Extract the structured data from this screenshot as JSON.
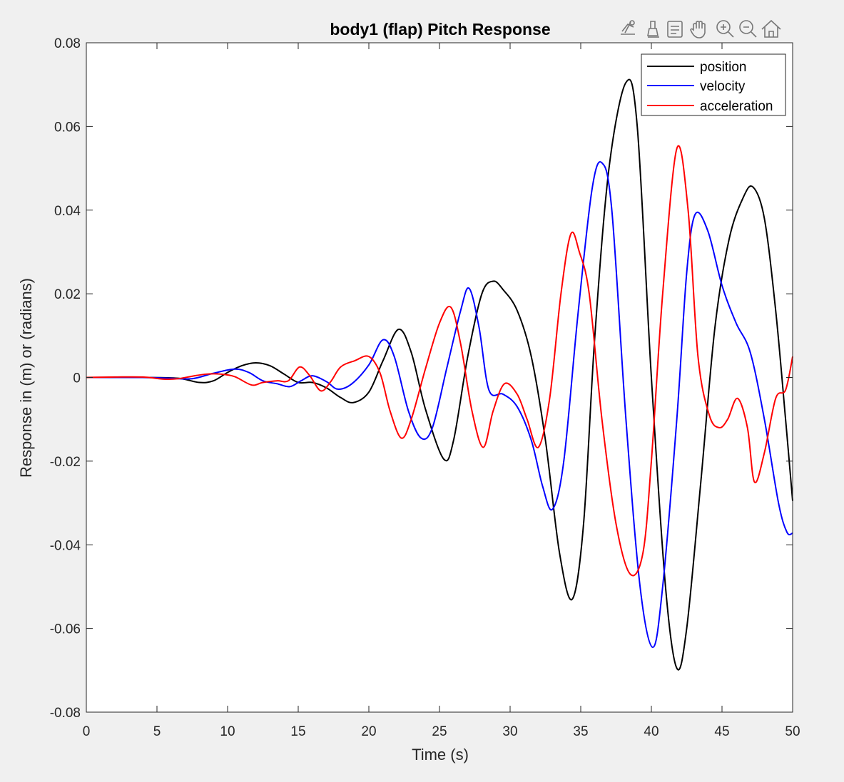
{
  "toolbar": {
    "icons": [
      "data-tips-icon",
      "brush-icon",
      "link-data-icon",
      "pan-hand-icon",
      "zoom-in-icon",
      "zoom-out-icon",
      "home-icon"
    ]
  },
  "chart_data": {
    "type": "line",
    "title": "body1 (flap) Pitch Response",
    "xlabel": "Time (s)",
    "ylabel": "Response in (m) or (radians)",
    "xlim": [
      0,
      50
    ],
    "ylim": [
      -0.08,
      0.08
    ],
    "xticks": [
      0,
      5,
      10,
      15,
      20,
      25,
      30,
      35,
      40,
      45,
      50
    ],
    "xtick_labels": [
      "0",
      "5",
      "10",
      "15",
      "20",
      "25",
      "30",
      "35",
      "40",
      "45",
      "50"
    ],
    "yticks": [
      -0.08,
      -0.06,
      -0.04,
      -0.02,
      0,
      0.02,
      0.04,
      0.06,
      0.08
    ],
    "ytick_labels": [
      "-0.08",
      "-0.06",
      "-0.04",
      "-0.02",
      "0",
      "0.02",
      "0.04",
      "0.06",
      "0.08"
    ],
    "grid": false,
    "legend_position": "top-right",
    "series": [
      {
        "name": "position",
        "color": "#000000",
        "x": [
          0,
          4,
          6.5,
          8,
          9,
          10,
          11,
          12,
          13,
          14,
          15,
          16,
          17,
          18,
          18.9,
          20,
          21,
          22.1,
          23,
          24,
          25.3,
          26,
          27,
          28,
          28.8,
          29.5,
          30.5,
          31.5,
          32.5,
          33.5,
          34.4,
          35.2,
          36,
          37,
          38.2,
          39,
          40,
          41,
          41.8,
          42.5,
          43.5,
          44.5,
          45.5,
          46.5,
          47.2,
          48,
          48.8,
          49.5,
          50
        ],
        "y": [
          0,
          0,
          -0.0002,
          -0.0012,
          -0.0008,
          0.0012,
          0.0028,
          0.0035,
          0.0028,
          0.0008,
          -0.0012,
          -0.0012,
          -0.0025,
          -0.0048,
          -0.006,
          -0.0035,
          0.004,
          0.0115,
          0.006,
          -0.0075,
          -0.0195,
          -0.015,
          0.005,
          0.02,
          0.023,
          0.021,
          0.016,
          0.005,
          -0.015,
          -0.042,
          -0.053,
          -0.035,
          0.01,
          0.05,
          0.0705,
          0.06,
          0.0,
          -0.05,
          -0.0695,
          -0.06,
          -0.025,
          0.012,
          0.033,
          0.043,
          0.0455,
          0.038,
          0.016,
          -0.01,
          -0.0295
        ]
      },
      {
        "name": "velocity",
        "color": "#0000ff",
        "x": [
          0,
          4,
          6,
          7.5,
          9,
          10.5,
          11.5,
          12.5,
          13.5,
          14.4,
          15.2,
          16,
          17,
          17.8,
          18.8,
          20,
          21,
          21.8,
          22.8,
          23.7,
          24.5,
          25.5,
          26.5,
          27.1,
          27.8,
          28.5,
          29.5,
          30.5,
          31.5,
          32.3,
          33,
          33.8,
          34.8,
          35.8,
          36.5,
          37.2,
          38.2,
          39.2,
          40.1,
          40.8,
          41.8,
          42.5,
          43.1,
          44,
          45,
          46,
          47,
          48,
          49,
          49.6,
          50
        ],
        "y": [
          0,
          0,
          -0.0002,
          -0.0003,
          0.001,
          0.002,
          0.0012,
          -0.0008,
          -0.0015,
          -0.0022,
          -0.0008,
          0.0004,
          -0.001,
          -0.0028,
          -0.0015,
          0.003,
          0.009,
          0.005,
          -0.008,
          -0.0145,
          -0.012,
          0.002,
          0.016,
          0.0213,
          0.012,
          -0.003,
          -0.004,
          -0.007,
          -0.015,
          -0.026,
          -0.0315,
          -0.02,
          0.015,
          0.045,
          0.0513,
          0.04,
          -0.01,
          -0.05,
          -0.0645,
          -0.05,
          -0.01,
          0.025,
          0.039,
          0.035,
          0.022,
          0.013,
          0.006,
          -0.01,
          -0.03,
          -0.037,
          -0.0372
        ]
      },
      {
        "name": "acceleration",
        "color": "#ff0000",
        "x": [
          0,
          2,
          4,
          5.5,
          6.5,
          7.5,
          8.5,
          9.5,
          10.5,
          11.7,
          12.5,
          13.5,
          14.3,
          15.1,
          15.8,
          16.6,
          17.3,
          18,
          19,
          20,
          20.8,
          21.5,
          22.3,
          23,
          24,
          25,
          25.8,
          26.5,
          27.3,
          28.1,
          28.8,
          29.6,
          30.5,
          31.2,
          32,
          32.8,
          33.6,
          34.3,
          34.9,
          35.6,
          36.5,
          37.5,
          38.5,
          39.4,
          40,
          40.8,
          41.8,
          42.6,
          43.3,
          44.1,
          44.8,
          45.4,
          46.1,
          46.8,
          47.3,
          48,
          48.8,
          49.5,
          50
        ],
        "y": [
          0,
          0.0001,
          0.0001,
          -0.0004,
          -0.0003,
          0.0003,
          0.0008,
          0.0008,
          0.0002,
          -0.0018,
          -0.0012,
          -0.0008,
          -0.0008,
          0.0025,
          0.0005,
          -0.0032,
          -0.001,
          0.0025,
          0.004,
          0.005,
          0.001,
          -0.008,
          -0.0145,
          -0.01,
          0.002,
          0.013,
          0.0168,
          0.008,
          -0.008,
          -0.0167,
          -0.008,
          -0.0015,
          -0.004,
          -0.01,
          -0.0167,
          -0.005,
          0.02,
          0.0343,
          0.03,
          0.02,
          -0.01,
          -0.035,
          -0.047,
          -0.042,
          -0.02,
          0.02,
          0.0547,
          0.04,
          0.005,
          -0.009,
          -0.012,
          -0.01,
          -0.005,
          -0.012,
          -0.025,
          -0.018,
          -0.005,
          -0.003,
          0.005
        ]
      }
    ]
  }
}
